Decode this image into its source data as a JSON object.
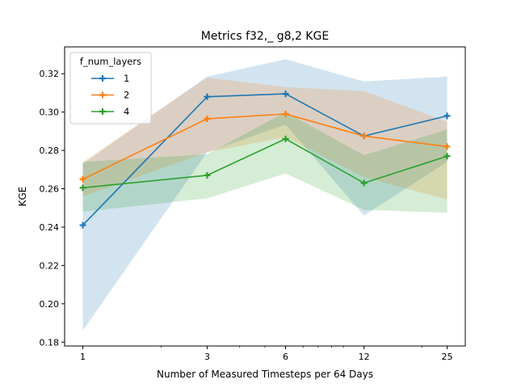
{
  "chart_data": {
    "type": "line",
    "title": "Metrics f32,_ g8,2 KGE",
    "xlabel": "Number of Measured Timesteps per 64 Days",
    "ylabel": "KGE",
    "x": [
      1,
      3,
      6,
      12,
      25
    ],
    "x_scale": "log",
    "x_tick_labels": [
      "1",
      "3",
      "6",
      "12",
      "25"
    ],
    "ylim": [
      0.178,
      0.334
    ],
    "y_ticks": [
      0.18,
      0.2,
      0.22,
      0.24,
      0.26,
      0.28,
      0.3,
      0.32
    ],
    "y_tick_labels": [
      "0.18",
      "0.20",
      "0.22",
      "0.24",
      "0.26",
      "0.28",
      "0.30",
      "0.32"
    ],
    "grid": false,
    "legend": {
      "title": "f_num_layers",
      "placement": "top-left"
    },
    "series": [
      {
        "name": "1",
        "color": "#1f77b4",
        "values": [
          0.241,
          0.308,
          0.3095,
          0.2875,
          0.298
        ],
        "lower": [
          0.186,
          0.279,
          0.2935,
          0.246,
          0.274
        ],
        "upper": [
          0.273,
          0.3185,
          0.3275,
          0.316,
          0.3185
        ]
      },
      {
        "name": "2",
        "color": "#ff7f0e",
        "values": [
          0.265,
          0.2965,
          0.299,
          0.2875,
          0.282
        ],
        "lower": [
          0.256,
          0.279,
          0.287,
          0.266,
          0.2545
        ],
        "upper": [
          0.274,
          0.318,
          0.313,
          0.311,
          0.295
        ]
      },
      {
        "name": "4",
        "color": "#2ca02c",
        "values": [
          0.2605,
          0.267,
          0.286,
          0.263,
          0.277
        ],
        "lower": [
          0.248,
          0.255,
          0.268,
          0.249,
          0.2475
        ],
        "upper": [
          0.274,
          0.278,
          0.3,
          0.2775,
          0.291
        ]
      }
    ]
  }
}
